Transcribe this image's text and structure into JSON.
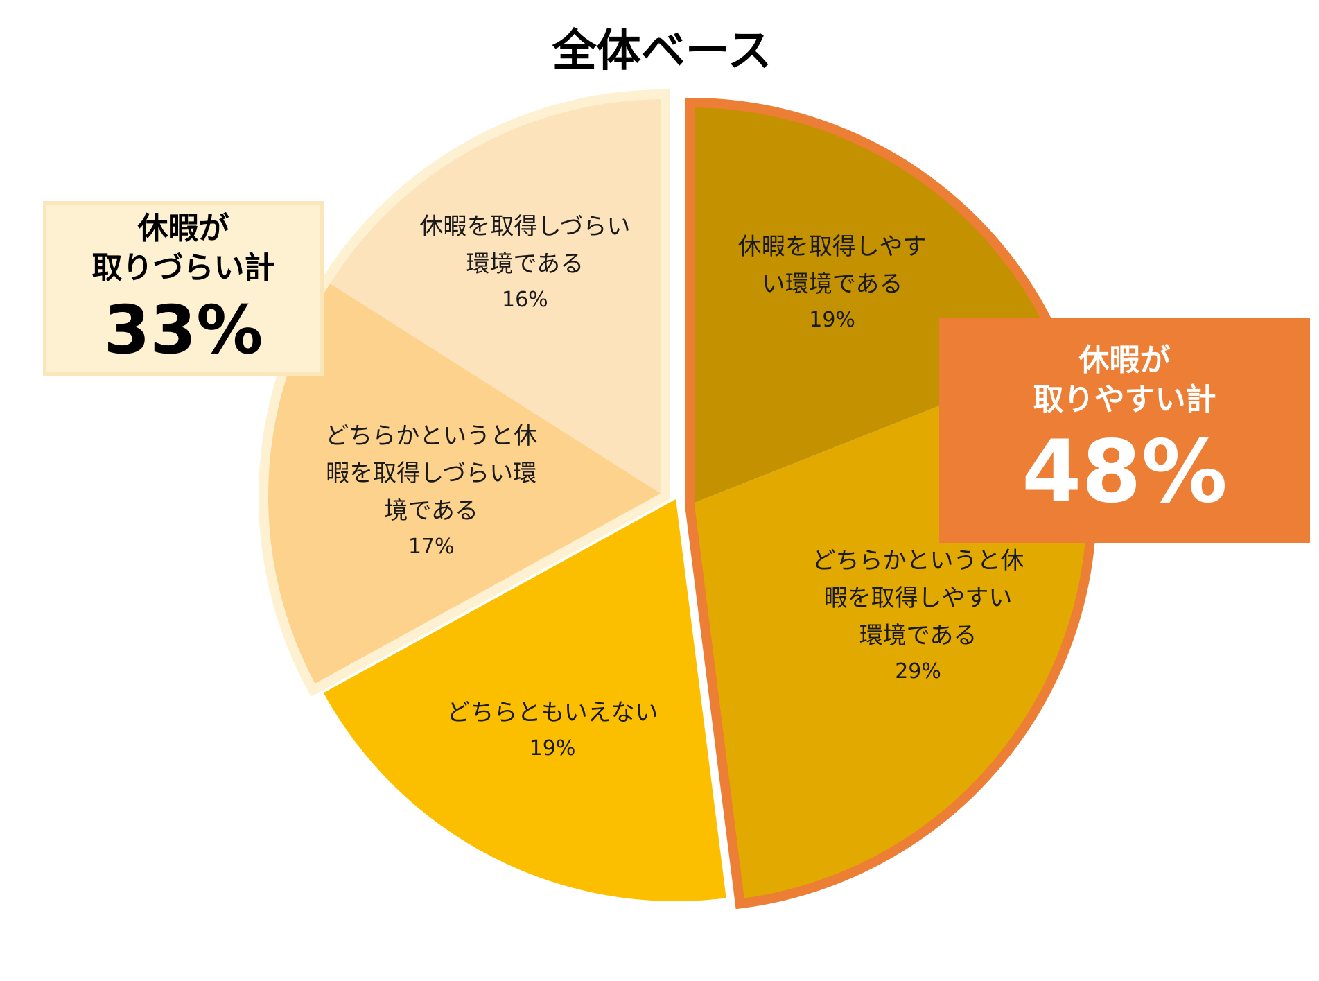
{
  "chart_data": {
    "type": "pie",
    "title": "全体ベース",
    "slices": [
      {
        "label": "休暇を取得しやすい環境である",
        "label_lines": [
          "休暇を取得しやす",
          "い環境である"
        ],
        "value": 19,
        "value_label": "19%",
        "color": "#c49200"
      },
      {
        "label": "どちらかというと休暇を取得しやすい環境である",
        "label_lines": [
          "どちらかというと休",
          "暇を取得しやすい",
          "環境である"
        ],
        "value": 29,
        "value_label": "29%",
        "color": "#e2aa00"
      },
      {
        "label": "どちらともいえない",
        "label_lines": [
          "どちらともいえない"
        ],
        "value": 19,
        "value_label": "19%",
        "color": "#fcbf00"
      },
      {
        "label": "どちらかというと休暇を取得しづらい環境である",
        "label_lines": [
          "どちらかというと休",
          "暇を取得しづらい環",
          "境である"
        ],
        "value": 17,
        "value_label": "17%",
        "color": "#fdd28c"
      },
      {
        "label": "休暇を取得しづらい環境である",
        "label_lines": [
          "休暇を取得しづらい",
          "環境である"
        ],
        "value": 16,
        "value_label": "16%",
        "color": "#fde3bb"
      }
    ],
    "groups": [
      {
        "name": "休暇が取りやすい計",
        "value_label": "48%",
        "slices": [
          0,
          1
        ],
        "outline_color": "#ec7e35"
      },
      {
        "name": "休暇が取りづらい計",
        "value_label": "33%",
        "slices": [
          3,
          4
        ],
        "outline_color": "#fdf1d2"
      }
    ],
    "legend": "none"
  },
  "callouts": {
    "hard": {
      "label": "休暇が\n取りづらい計",
      "value": "33%",
      "color": "#fdf1d2"
    },
    "easy": {
      "label": "休暇が\n取りやすい計",
      "value": "48%",
      "color": "#ec7e35"
    }
  }
}
